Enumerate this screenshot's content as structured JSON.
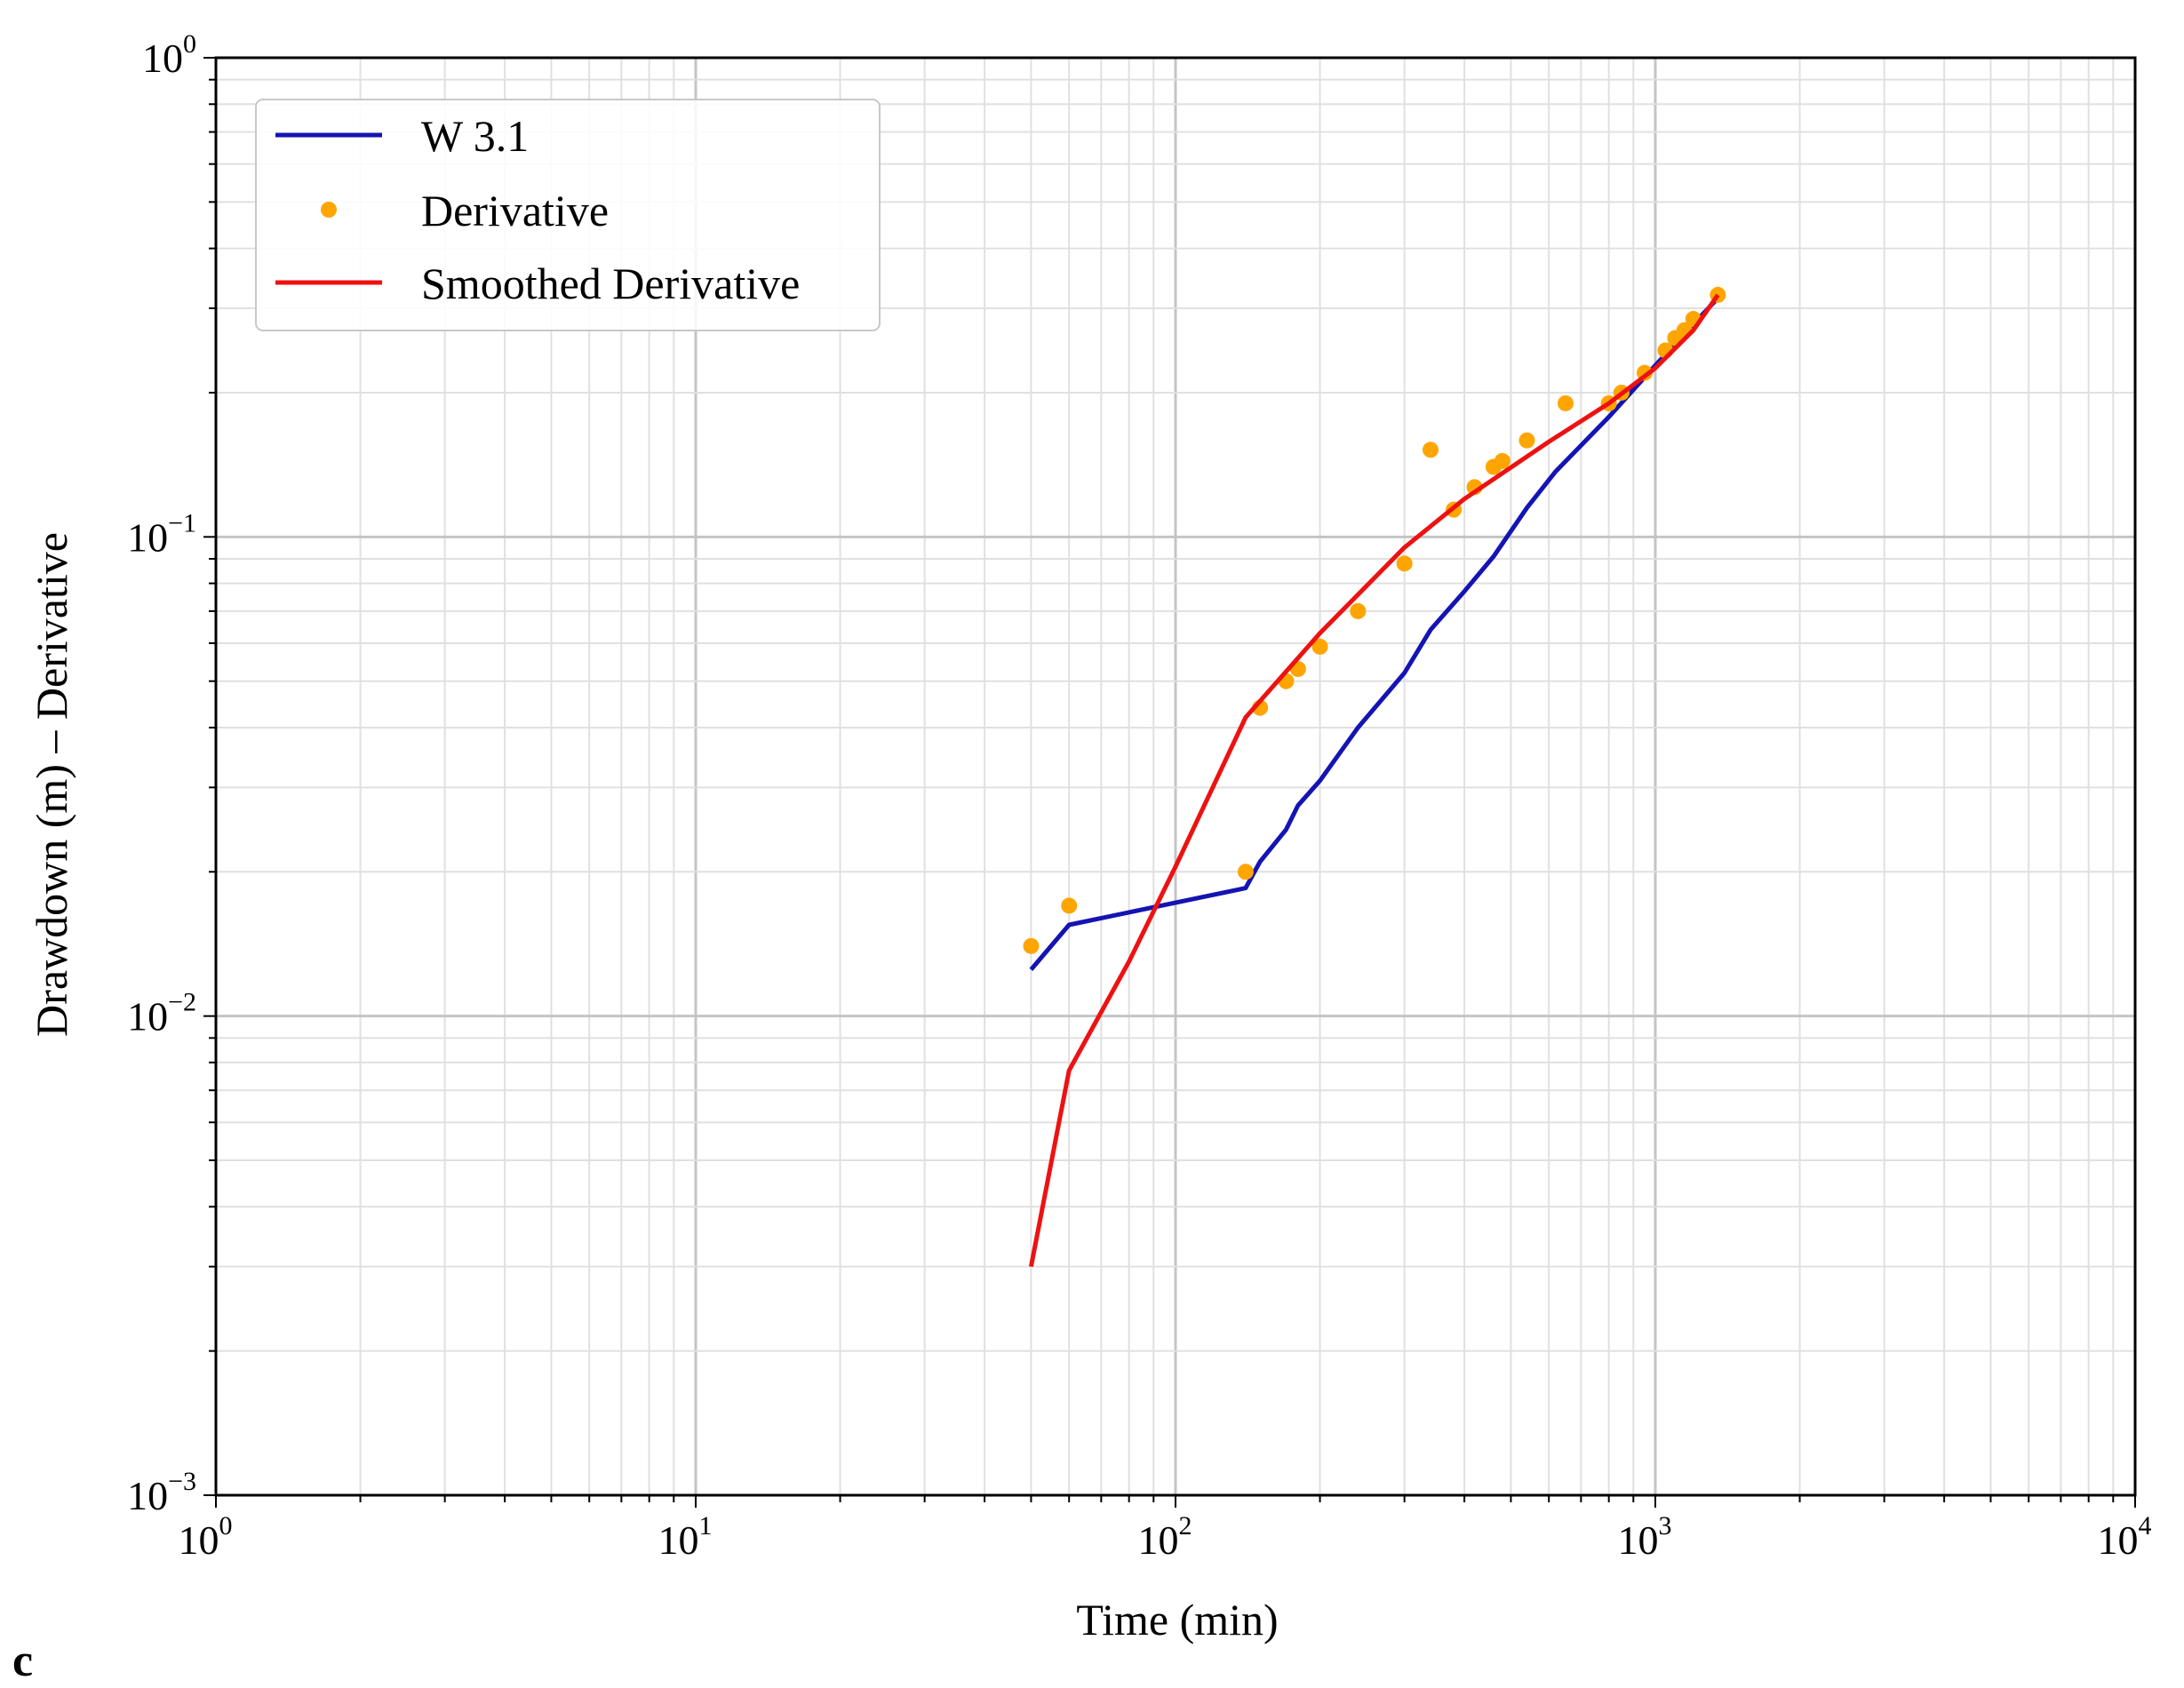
{
  "chart_data": {
    "type": "line",
    "panel_label": "c",
    "xlabel": "Time (min)",
    "ylabel": "Drawdown (m) – Derivative",
    "x_scale": "log",
    "y_scale": "log",
    "xlim": [
      1,
      10000
    ],
    "ylim": [
      0.001,
      1
    ],
    "x_ticks": [
      {
        "base": "10",
        "exp": "0",
        "value": 1
      },
      {
        "base": "10",
        "exp": "1",
        "value": 10
      },
      {
        "base": "10",
        "exp": "2",
        "value": 100
      },
      {
        "base": "10",
        "exp": "3",
        "value": 1000
      },
      {
        "base": "10",
        "exp": "4",
        "value": 10000
      }
    ],
    "y_ticks": [
      {
        "base": "10",
        "exp": "−3",
        "value": 0.001
      },
      {
        "base": "10",
        "exp": "−2",
        "value": 0.01
      },
      {
        "base": "10",
        "exp": "−1",
        "value": 0.1
      },
      {
        "base": "10",
        "exp": "0",
        "value": 1
      }
    ],
    "grid": true,
    "legend_position": "top-left",
    "series": [
      {
        "name": "W 3.1",
        "kind": "line",
        "color": "#1414b4",
        "points": [
          [
            50,
            0.0125
          ],
          [
            60,
            0.0155
          ],
          [
            140,
            0.0185
          ],
          [
            150,
            0.021
          ],
          [
            170,
            0.0245
          ],
          [
            180,
            0.0275
          ],
          [
            200,
            0.031
          ],
          [
            240,
            0.04
          ],
          [
            300,
            0.052
          ],
          [
            340,
            0.064
          ],
          [
            400,
            0.077
          ],
          [
            460,
            0.091
          ],
          [
            540,
            0.115
          ],
          [
            620,
            0.137
          ],
          [
            800,
            0.178
          ],
          [
            1000,
            0.228
          ],
          [
            1200,
            0.278
          ],
          [
            1350,
            0.315
          ]
        ]
      },
      {
        "name": "Derivative",
        "kind": "scatter",
        "color": "#ffa500",
        "points": [
          [
            50,
            0.014
          ],
          [
            60,
            0.017
          ],
          [
            140,
            0.02
          ],
          [
            150,
            0.044
          ],
          [
            170,
            0.05
          ],
          [
            180,
            0.053
          ],
          [
            200,
            0.059
          ],
          [
            240,
            0.07
          ],
          [
            300,
            0.088
          ],
          [
            340,
            0.152
          ],
          [
            380,
            0.114
          ],
          [
            420,
            0.127
          ],
          [
            460,
            0.14
          ],
          [
            480,
            0.144
          ],
          [
            540,
            0.159
          ],
          [
            650,
            0.19
          ],
          [
            800,
            0.19
          ],
          [
            850,
            0.2
          ],
          [
            950,
            0.22
          ],
          [
            1050,
            0.245
          ],
          [
            1100,
            0.26
          ],
          [
            1150,
            0.27
          ],
          [
            1200,
            0.285
          ],
          [
            1350,
            0.32
          ]
        ]
      },
      {
        "name": "Smoothed Derivative",
        "kind": "line",
        "color": "#ee1111",
        "points": [
          [
            50,
            0.003
          ],
          [
            60,
            0.0077
          ],
          [
            80,
            0.013
          ],
          [
            100,
            0.0205
          ],
          [
            140,
            0.042
          ],
          [
            200,
            0.063
          ],
          [
            300,
            0.095
          ],
          [
            400,
            0.12
          ],
          [
            600,
            0.158
          ],
          [
            800,
            0.19
          ],
          [
            1000,
            0.225
          ],
          [
            1200,
            0.27
          ],
          [
            1350,
            0.32
          ]
        ]
      }
    ]
  }
}
